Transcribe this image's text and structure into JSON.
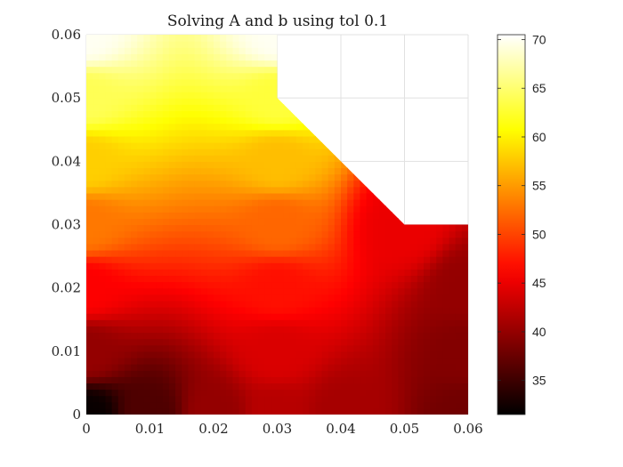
{
  "chart_data": {
    "type": "heatmap",
    "title": "Solving A and b using tol 0.1",
    "xlabel": "",
    "ylabel": "",
    "xlim": [
      0,
      0.06
    ],
    "ylim": [
      0,
      0.06
    ],
    "x_ticks": [
      "0",
      "0.01",
      "0.02",
      "0.03",
      "0.04",
      "0.05",
      "0.06"
    ],
    "y_ticks": [
      "0",
      "0.01",
      "0.02",
      "0.03",
      "0.04",
      "0.05",
      "0.06"
    ],
    "grid": true,
    "colormap": "hot",
    "colorbar": {
      "location": "right",
      "limits": [
        31.5,
        70.5
      ],
      "ticks": [
        "35",
        "40",
        "45",
        "50",
        "55",
        "60",
        "65",
        "70"
      ]
    },
    "domain_polygon": [
      [
        0,
        0
      ],
      [
        0.06,
        0
      ],
      [
        0.06,
        0.03
      ],
      [
        0.05,
        0.03
      ],
      [
        0.03,
        0.05
      ],
      [
        0.03,
        0.06
      ],
      [
        0,
        0.06
      ]
    ],
    "value_samples": [
      {
        "x": 0.0,
        "y": 0.0,
        "value": 32
      },
      {
        "x": 0.01,
        "y": 0.0,
        "value": 36
      },
      {
        "x": 0.02,
        "y": 0.0,
        "value": 40
      },
      {
        "x": 0.03,
        "y": 0.0,
        "value": 42
      },
      {
        "x": 0.04,
        "y": 0.0,
        "value": 41
      },
      {
        "x": 0.06,
        "y": 0.0,
        "value": 38
      },
      {
        "x": 0.0,
        "y": 0.01,
        "value": 40
      },
      {
        "x": 0.03,
        "y": 0.01,
        "value": 44
      },
      {
        "x": 0.06,
        "y": 0.01,
        "value": 39
      },
      {
        "x": 0.0,
        "y": 0.02,
        "value": 46
      },
      {
        "x": 0.03,
        "y": 0.02,
        "value": 47
      },
      {
        "x": 0.06,
        "y": 0.02,
        "value": 40
      },
      {
        "x": 0.0,
        "y": 0.03,
        "value": 53
      },
      {
        "x": 0.03,
        "y": 0.03,
        "value": 52
      },
      {
        "x": 0.05,
        "y": 0.03,
        "value": 45
      },
      {
        "x": 0.0,
        "y": 0.04,
        "value": 58
      },
      {
        "x": 0.03,
        "y": 0.04,
        "value": 57
      },
      {
        "x": 0.0,
        "y": 0.05,
        "value": 64
      },
      {
        "x": 0.03,
        "y": 0.05,
        "value": 63
      },
      {
        "x": 0.0,
        "y": 0.06,
        "value": 70
      },
      {
        "x": 0.03,
        "y": 0.06,
        "value": 70
      }
    ]
  }
}
